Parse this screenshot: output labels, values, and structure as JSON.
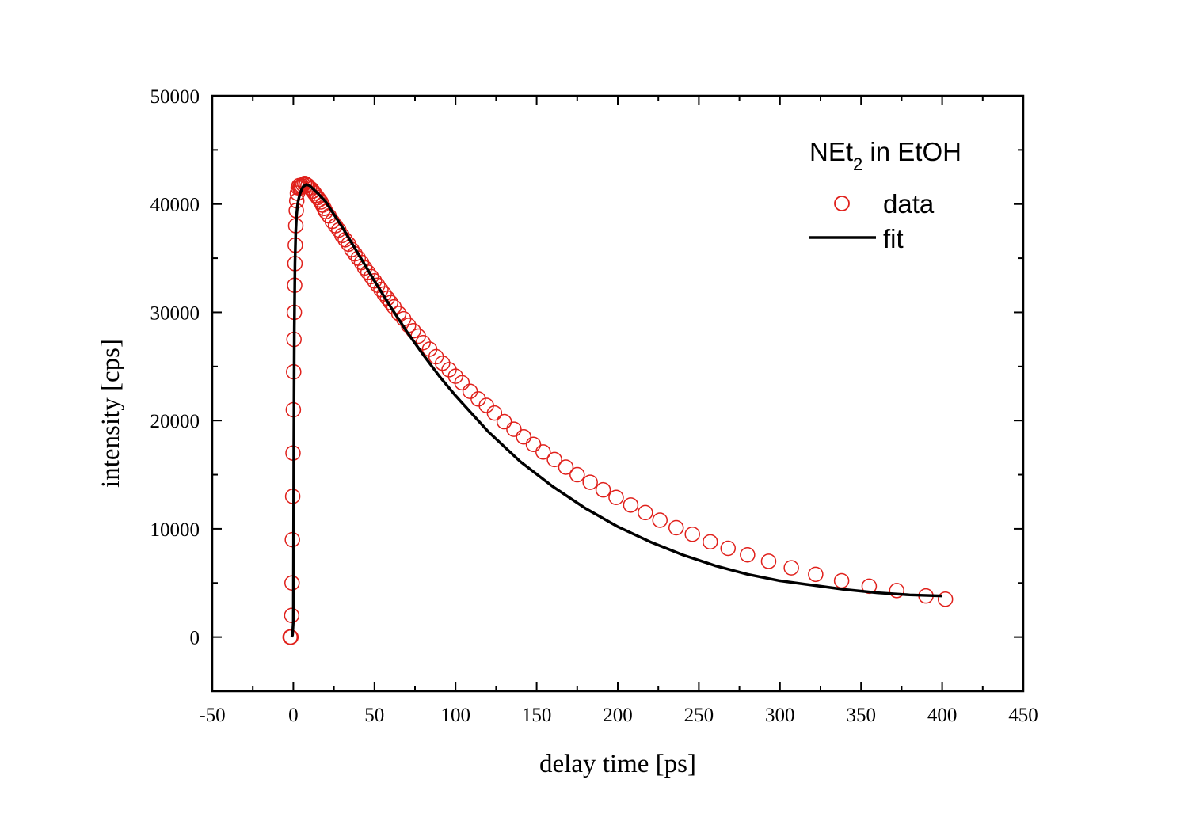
{
  "chart_data": {
    "type": "scatter",
    "xlabel": "delay time [ps]",
    "ylabel": "intensity [cps]",
    "xlim": [
      -50,
      450
    ],
    "ylim": [
      -5000,
      50000
    ],
    "x_ticks": [
      -50,
      0,
      50,
      100,
      150,
      200,
      250,
      300,
      350,
      400,
      450
    ],
    "x_tick_labels": [
      "-50",
      "0",
      "50",
      "100",
      "150",
      "200",
      "250",
      "300",
      "350",
      "400",
      "450"
    ],
    "y_ticks": [
      0,
      10000,
      20000,
      30000,
      40000,
      50000
    ],
    "y_tick_labels": [
      "0",
      "10000",
      "20000",
      "30000",
      "40000",
      "50000"
    ],
    "grid": false,
    "legend": {
      "placement": "top-right",
      "title_main": "NEt",
      "title_sub": "2",
      "title_rest": " in EtOH",
      "entries": [
        "data",
        "fit"
      ]
    },
    "series": [
      {
        "name": "data",
        "kind": "scatter",
        "marker": "open-circle",
        "color": "#e0201b",
        "x": [
          -2,
          -1.5,
          -1,
          -0.8,
          -0.6,
          -0.4,
          -0.2,
          0,
          0.2,
          0.4,
          0.6,
          0.8,
          1.0,
          1.2,
          1.5,
          1.8,
          2.1,
          2.5,
          3,
          3.5,
          4,
          4.5,
          5,
          6,
          7,
          8,
          9,
          10,
          11,
          12,
          13,
          14,
          15,
          16,
          17,
          18,
          19,
          20,
          22,
          24,
          26,
          28,
          30,
          32,
          34,
          36,
          38,
          40,
          42,
          44,
          46,
          48,
          50,
          52,
          54,
          56,
          58,
          60,
          62,
          65,
          68,
          71,
          74,
          77,
          80,
          84,
          88,
          92,
          96,
          100,
          104,
          109,
          114,
          119,
          124,
          130,
          136,
          142,
          148,
          154,
          161,
          168,
          175,
          183,
          191,
          199,
          208,
          217,
          226,
          236,
          246,
          257,
          268,
          280,
          293,
          307,
          322,
          338,
          355,
          372,
          390,
          402
        ],
        "y": [
          0,
          0,
          2000,
          5000,
          9000,
          13000,
          17000,
          21000,
          24500,
          27500,
          30000,
          32500,
          34500,
          36200,
          38000,
          39400,
          40300,
          41000,
          41500,
          41700,
          41500,
          41600,
          41700,
          41800,
          41900,
          41800,
          41700,
          41500,
          41400,
          41200,
          41000,
          40800,
          40600,
          40400,
          40200,
          39900,
          39600,
          39300,
          38900,
          38400,
          38000,
          37600,
          37100,
          36700,
          36300,
          35800,
          35400,
          35000,
          34600,
          34100,
          33700,
          33300,
          32900,
          32500,
          32100,
          31700,
          31300,
          30900,
          30500,
          29900,
          29400,
          28800,
          28300,
          27800,
          27200,
          26600,
          25900,
          25300,
          24700,
          24100,
          23500,
          22700,
          22000,
          21400,
          20700,
          19900,
          19200,
          18500,
          17800,
          17100,
          16400,
          15700,
          15000,
          14300,
          13600,
          12900,
          12200,
          11500,
          10800,
          10100,
          9500,
          8800,
          8200,
          7600,
          7000,
          6400,
          5800,
          5200,
          4700,
          4300,
          3800,
          3500
        ]
      },
      {
        "name": "fit",
        "kind": "line",
        "color": "#000000",
        "x": [
          -1,
          -0.5,
          0,
          0.3,
          0.6,
          1,
          1.5,
          2,
          2.5,
          3,
          4,
          5,
          6,
          8,
          10,
          15,
          20,
          30,
          40,
          50,
          60,
          70,
          80,
          90,
          100,
          120,
          140,
          160,
          180,
          200,
          220,
          240,
          260,
          280,
          300,
          320,
          340,
          360,
          380,
          400
        ],
        "y": [
          0,
          200,
          1500,
          18000,
          28500,
          34500,
          37500,
          39000,
          39800,
          40300,
          40900,
          41300,
          41600,
          41800,
          41700,
          41000,
          40200,
          37900,
          35400,
          32900,
          30500,
          28200,
          26100,
          24100,
          22300,
          19000,
          16200,
          13900,
          11900,
          10200,
          8800,
          7600,
          6600,
          5800,
          5200,
          4800,
          4400,
          4100,
          3900,
          3800
        ]
      }
    ]
  }
}
